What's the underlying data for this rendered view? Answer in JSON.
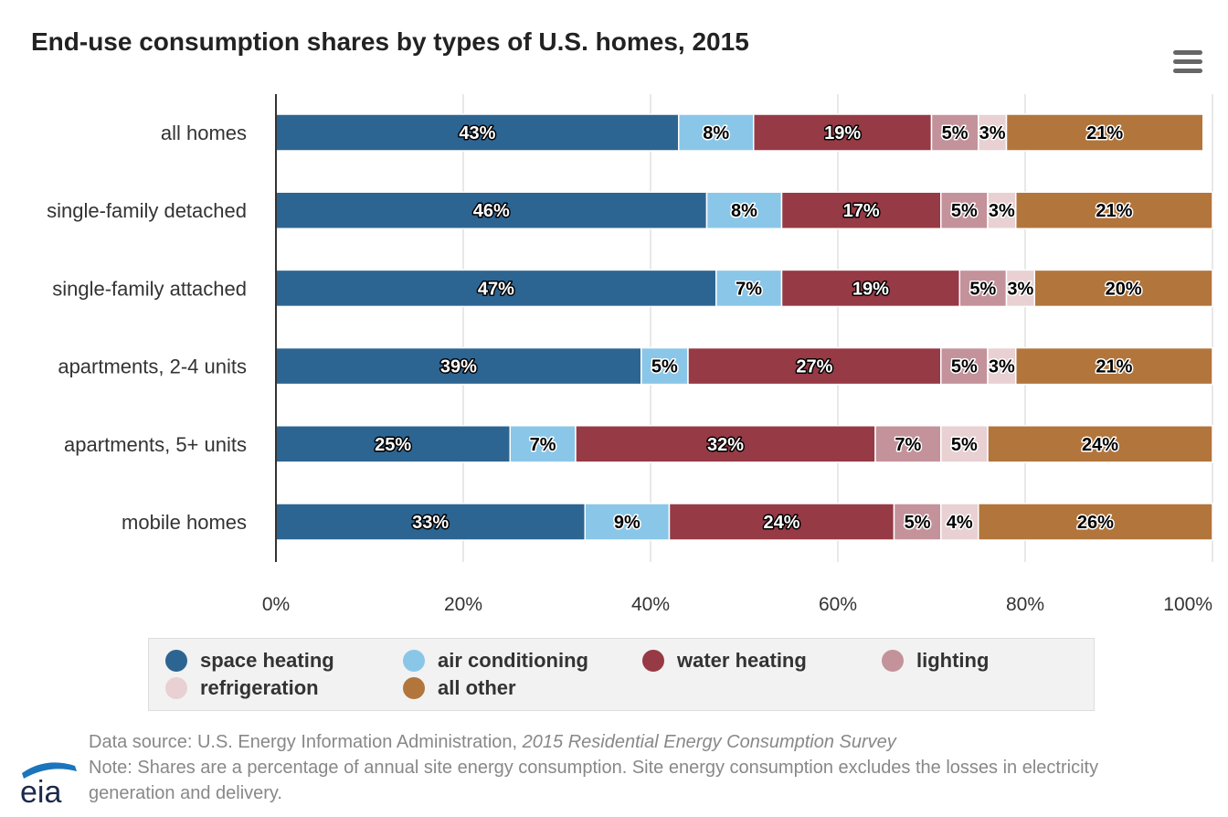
{
  "chart_data": {
    "type": "bar",
    "orientation": "horizontal",
    "stacked": true,
    "title": "End-use consumption shares by types of U.S. homes, 2015",
    "categories": [
      "all homes",
      "single-family detached",
      "single-family attached",
      "apartments, 2-4 units",
      "apartments, 5+ units",
      "mobile homes"
    ],
    "series": [
      {
        "name": "space heating",
        "color": "#2d6592",
        "label_color": "#ffffff",
        "values": [
          43,
          46,
          47,
          39,
          25,
          33
        ],
        "labels": [
          "43%",
          "46%",
          "47%",
          "39%",
          "25%",
          "33%"
        ]
      },
      {
        "name": "air conditioning",
        "color": "#8ac6e8",
        "label_color": "#000000",
        "values": [
          8,
          8,
          7,
          5,
          7,
          9
        ],
        "labels": [
          "8%",
          "8%",
          "7%",
          "5%",
          "7%",
          "9%"
        ]
      },
      {
        "name": "water heating",
        "color": "#963a45",
        "label_color": "#ffffff",
        "values": [
          19,
          17,
          19,
          27,
          32,
          24
        ],
        "labels": [
          "19%",
          "17%",
          "19%",
          "27%",
          "32%",
          "24%"
        ]
      },
      {
        "name": "lighting",
        "color": "#c4929a",
        "label_color": "#000000",
        "values": [
          5,
          5,
          5,
          5,
          7,
          5
        ],
        "labels": [
          "5%",
          "5%",
          "5%",
          "5%",
          "7%",
          "5%"
        ]
      },
      {
        "name": "refrigeration",
        "color": "#e8d0d3",
        "label_color": "#000000",
        "values": [
          3,
          3,
          3,
          3,
          5,
          4
        ],
        "labels": [
          "3%",
          "3%",
          "3%",
          "3%",
          "5%",
          "4%"
        ]
      },
      {
        "name": "all other",
        "color": "#b2753c",
        "label_color": "#000000",
        "values": [
          21,
          21,
          20,
          21,
          24,
          26
        ],
        "labels": [
          "21%",
          "21%",
          "20%",
          "21%",
          "24%",
          "26%"
        ]
      }
    ],
    "xlim": [
      0,
      100
    ],
    "x_ticks": [
      0,
      20,
      40,
      60,
      80,
      100
    ],
    "x_tick_labels": [
      "0%",
      "20%",
      "40%",
      "60%",
      "80%",
      "100%"
    ],
    "grid": true,
    "legend_position": "bottom"
  },
  "footer": {
    "source_prefix": "Data source: U.S. Energy Information Administration, ",
    "source_title": "2015 Residential Energy Consumption Survey",
    "note": "Note: Shares are a percentage of annual site energy consumption. Site energy consumption excludes the losses in electricity generation and delivery."
  },
  "logo": {
    "text": "eia"
  },
  "menu": {
    "icon": "hamburger-menu-icon"
  }
}
